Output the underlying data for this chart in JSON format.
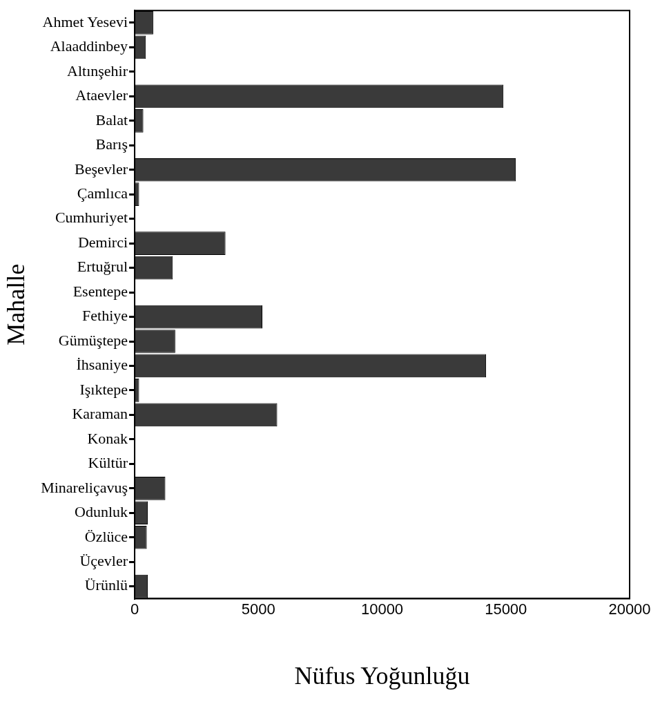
{
  "chart_data": {
    "type": "bar",
    "orientation": "horizontal",
    "xlabel": "Nüfus Yoğunluğu",
    "ylabel": "Mahalle",
    "categories": [
      "Ahmet Yesevi",
      "Alaaddinbey",
      "Altınşehir",
      "Ataevler",
      "Balat",
      "Barış",
      "Beşevler",
      "Çamlıca",
      "Cumhuriyet",
      "Demirci",
      "Ertuğrul",
      "Esentepe",
      "Fethiye",
      "Gümüştepe",
      "İhsaniye",
      "Işıktepe",
      "Karaman",
      "Konak",
      "Kültür",
      "Minareliçavuş",
      "Odunluk",
      "Özlüce",
      "Üçevler",
      "Ürünlü"
    ],
    "values": [
      750,
      450,
      0,
      14900,
      350,
      0,
      15400,
      180,
      0,
      3670,
      1540,
      0,
      5160,
      1640,
      14200,
      180,
      5760,
      0,
      0,
      1240,
      530,
      490,
      0,
      530
    ],
    "color": "#3a3a3a",
    "xlim": [
      0,
      20000
    ],
    "xticks": [
      0,
      5000,
      10000,
      15000,
      20000
    ],
    "grid": false,
    "legend": false
  }
}
